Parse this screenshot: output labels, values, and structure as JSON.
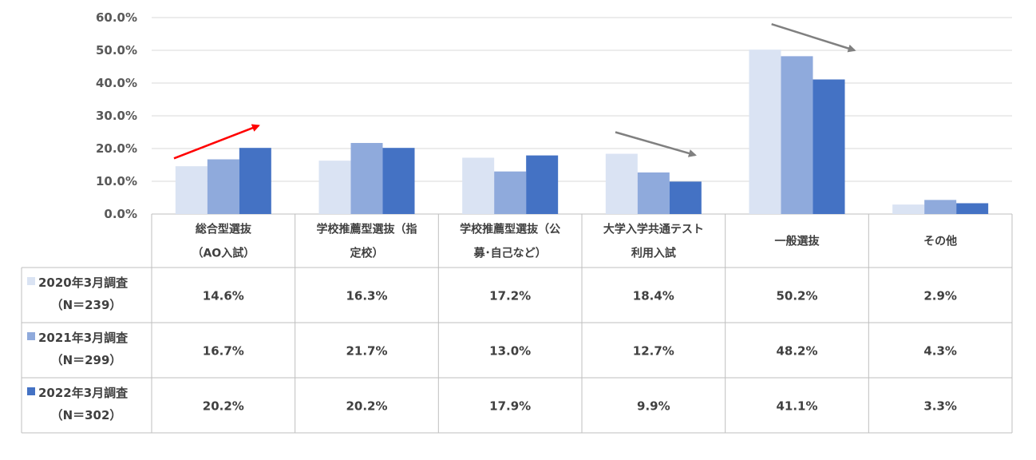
{
  "chart_data": {
    "type": "bar",
    "title": "",
    "xlabel": "",
    "ylabel": "",
    "ylim": [
      0,
      60
    ],
    "y_ticks": [
      "0.0%",
      "10.0%",
      "20.0%",
      "30.0%",
      "40.0%",
      "50.0%",
      "60.0%"
    ],
    "grid": true,
    "categories": [
      [
        "総合型選抜",
        "（AO入試）"
      ],
      [
        "学校推薦型選抜（指",
        "定校）"
      ],
      [
        "学校推薦型選抜（公",
        "募･自己など）"
      ],
      [
        "大学入学共通テスト",
        "利用入試"
      ],
      [
        "一般選抜"
      ],
      [
        "その他"
      ]
    ],
    "series": [
      {
        "name": [
          "2020年3月調査",
          "（N＝239）"
        ],
        "color": "#dae3f3",
        "values": [
          14.6,
          16.3,
          17.2,
          18.4,
          50.2,
          2.9
        ],
        "labels": [
          "14.6%",
          "16.3%",
          "17.2%",
          "18.4%",
          "50.2%",
          "2.9%"
        ]
      },
      {
        "name": [
          "2021年3月調査",
          "（N＝299）"
        ],
        "color": "#8faadc",
        "values": [
          16.7,
          21.7,
          13.0,
          12.7,
          48.2,
          4.3
        ],
        "labels": [
          "16.7%",
          "21.7%",
          "13.0%",
          "12.7%",
          "48.2%",
          "4.3%"
        ]
      },
      {
        "name": [
          "2022年3月調査",
          "（N＝302）"
        ],
        "color": "#4472c4",
        "values": [
          20.2,
          20.2,
          17.9,
          9.9,
          41.1,
          3.3
        ],
        "labels": [
          "20.2%",
          "20.2%",
          "17.9%",
          "9.9%",
          "41.1%",
          "3.3%"
        ]
      }
    ],
    "annotations": [
      {
        "type": "arrow",
        "color": "#ff0000",
        "from": [
          0,
          17
        ],
        "to": [
          0,
          27
        ],
        "direction": "up",
        "anchor_category": 0
      },
      {
        "type": "arrow",
        "color": "#808080",
        "from": [
          3,
          25
        ],
        "to": [
          3,
          18
        ],
        "direction": "down",
        "anchor_category": 3
      },
      {
        "type": "arrow",
        "color": "#808080",
        "from": [
          4,
          58
        ],
        "to": [
          4,
          50
        ],
        "direction": "down",
        "anchor_category": 4
      }
    ]
  }
}
